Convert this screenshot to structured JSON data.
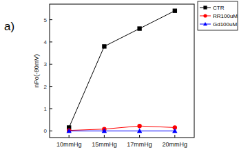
{
  "chart_data": {
    "type": "line",
    "annotation": "a)",
    "y_label": "nPo(-80mV)",
    "categories": [
      "10mmHg",
      "15mmHg",
      "17mmHg",
      "20mmHg"
    ],
    "series": [
      {
        "name": "CTR",
        "color": "#000000",
        "marker": "square",
        "values": [
          0.15,
          3.8,
          4.6,
          5.4
        ]
      },
      {
        "name": "RR100uM",
        "color": "#ff0000",
        "marker": "circle",
        "values": [
          0.02,
          0.08,
          0.22,
          0.15
        ]
      },
      {
        "name": "Gd100uM",
        "color": "#0000ff",
        "marker": "triangle",
        "values": [
          0,
          0,
          0,
          0
        ]
      }
    ],
    "ylim": [
      -0.3,
      5.7
    ],
    "yticks": [
      0,
      1,
      2,
      3,
      4,
      5
    ],
    "legend": "upper right",
    "grid": false
  }
}
